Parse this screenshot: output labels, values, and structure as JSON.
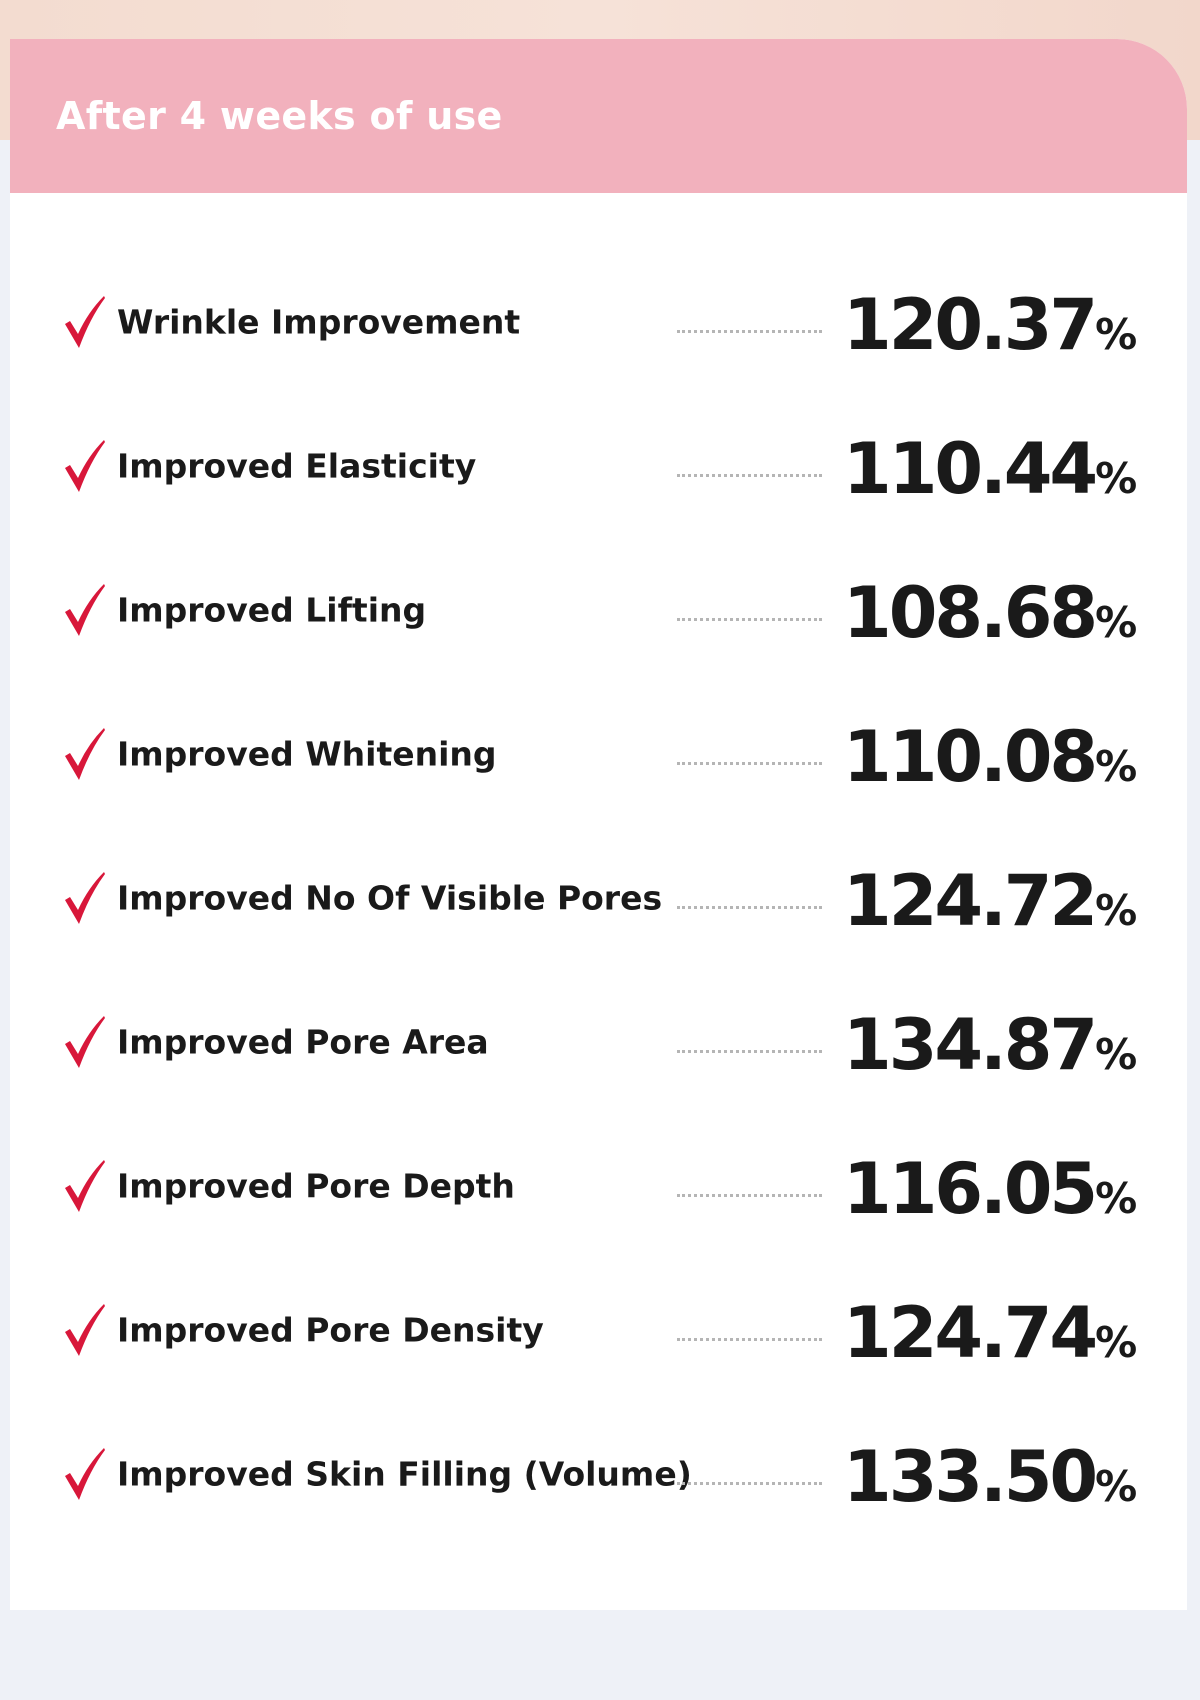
{
  "header": {
    "title": "After 4 weeks of use"
  },
  "items": [
    {
      "label": "Wrinkle Improvement",
      "value": "120.37",
      "unit": "%"
    },
    {
      "label": "Improved Elasticity",
      "value": "110.44",
      "unit": "%"
    },
    {
      "label": "Improved Lifting",
      "value": "108.68",
      "unit": "%"
    },
    {
      "label": "Improved Whitening",
      "value": "110.08",
      "unit": "%"
    },
    {
      "label": "Improved No Of Visible Pores",
      "value": "124.72",
      "unit": "%"
    },
    {
      "label": "Improved Pore Area",
      "value": "134.87",
      "unit": "%"
    },
    {
      "label": "Improved Pore Depth",
      "value": "116.05",
      "unit": "%"
    },
    {
      "label": "Improved Pore Density",
      "value": "124.74",
      "unit": "%"
    },
    {
      "label": "Improved Skin Filling (Volume)",
      "value": "133.50",
      "unit": "%"
    }
  ]
}
